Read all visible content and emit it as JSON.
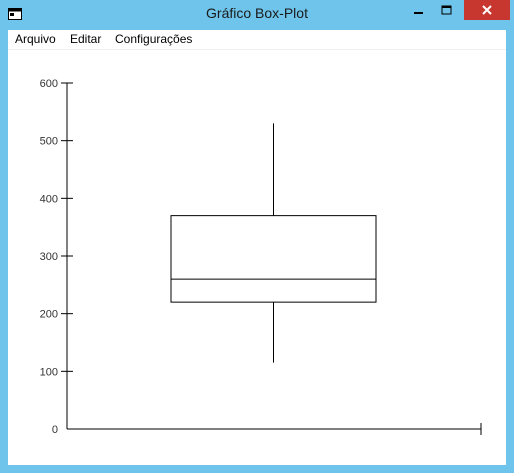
{
  "window": {
    "title": "Gráfico Box-Plot",
    "controls": [
      "minimize-icon",
      "maximize-icon",
      "close-icon"
    ]
  },
  "menu": {
    "items": [
      {
        "label": "Arquivo"
      },
      {
        "label": "Editar"
      },
      {
        "label": "Configurações"
      }
    ]
  },
  "chart_data": {
    "type": "boxplot",
    "title": "",
    "xlabel": "",
    "ylabel": "",
    "ylim": [
      0,
      600
    ],
    "yticks": [
      "0",
      "100",
      "200",
      "300",
      "400",
      "500",
      "600"
    ],
    "grid": false,
    "box": {
      "whisker_low": 115,
      "q1": 220,
      "median": 260,
      "q3": 370,
      "whisker_high": 530
    }
  },
  "colors": {
    "frame": "#6ec4ea",
    "close_button": "#c7372f",
    "plot_lines": "#000000"
  }
}
